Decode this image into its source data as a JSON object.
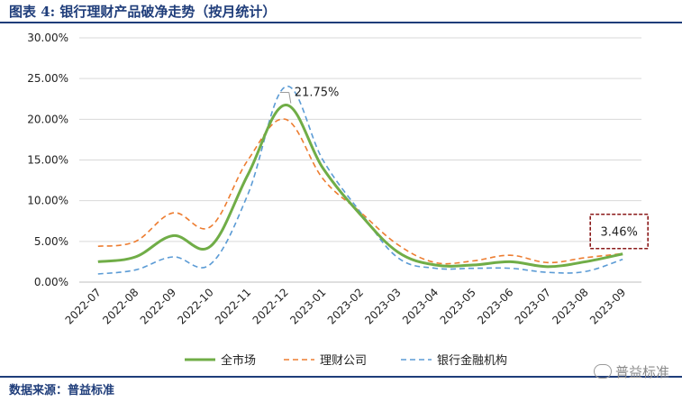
{
  "header": {
    "title": "图表 4:   银行理财产品破净走势（按月统计）"
  },
  "footer": {
    "source": "数据来源：普益标准",
    "watermark": "普益标准"
  },
  "chart_data": {
    "type": "line",
    "categories": [
      "2022-07",
      "2022-08",
      "2022-09",
      "2022-10",
      "2022-11",
      "2022-12",
      "2023-01",
      "2023-02",
      "2023-03",
      "2023-04",
      "2023-05",
      "2023-06",
      "2023-07",
      "2023-08",
      "2023-09"
    ],
    "y_ticks": [
      "30.00%",
      "25.00%",
      "20.00%",
      "15.00%",
      "10.00%",
      "5.00%",
      "0.00%"
    ],
    "ylim": [
      0,
      30
    ],
    "ytick_step": 5,
    "grid": true,
    "legend_position": "bottom",
    "series": [
      {
        "name": "全市场",
        "color": "#70ad47",
        "style": "solid",
        "values": [
          2.5,
          3.1,
          5.7,
          4.4,
          13.2,
          21.75,
          14.0,
          8.3,
          3.7,
          2.1,
          2.1,
          2.5,
          1.9,
          2.5,
          3.46
        ]
      },
      {
        "name": "理财公司",
        "color": "#ed7d31",
        "style": "dashed",
        "values": [
          4.4,
          5.0,
          8.5,
          6.8,
          15.0,
          20.0,
          12.7,
          8.6,
          4.6,
          2.4,
          2.6,
          3.3,
          2.4,
          3.0,
          3.5
        ]
      },
      {
        "name": "银行金融机构",
        "color": "#5b9bd5",
        "style": "dashed",
        "values": [
          1.0,
          1.5,
          3.1,
          2.2,
          10.8,
          24.0,
          15.0,
          8.6,
          3.0,
          1.7,
          1.7,
          1.7,
          1.2,
          1.3,
          2.8
        ]
      }
    ],
    "annotations": [
      {
        "text": "21.75%",
        "series": 0,
        "index": 5,
        "boxed": false
      },
      {
        "text": "3.46%",
        "series": 0,
        "index": 14,
        "boxed": true
      }
    ]
  }
}
